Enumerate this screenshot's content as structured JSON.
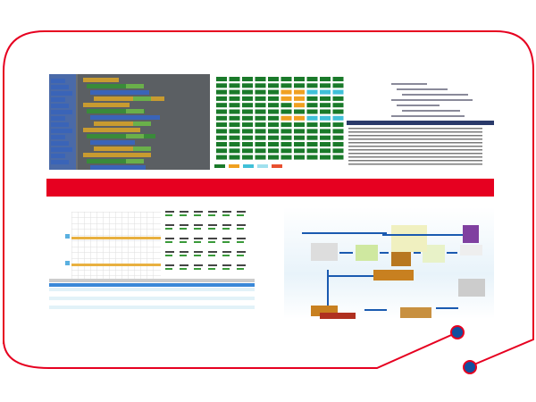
{
  "colors": {
    "frame": "#e60020",
    "banner": "#e60020",
    "node": "#1150a0",
    "block_green": "#1a7a2a",
    "block_orange": "#f0a020",
    "block_cyan": "#40c0d8",
    "code_gray": "#6a6e72",
    "flow_arrow": "#1a5ab0"
  },
  "panels": [
    {
      "id": "visual-programming-blocks"
    },
    {
      "id": "status-grid"
    },
    {
      "id": "code-editor-log"
    },
    {
      "id": "schedule-table"
    },
    {
      "id": "logistics-flowchart"
    }
  ]
}
